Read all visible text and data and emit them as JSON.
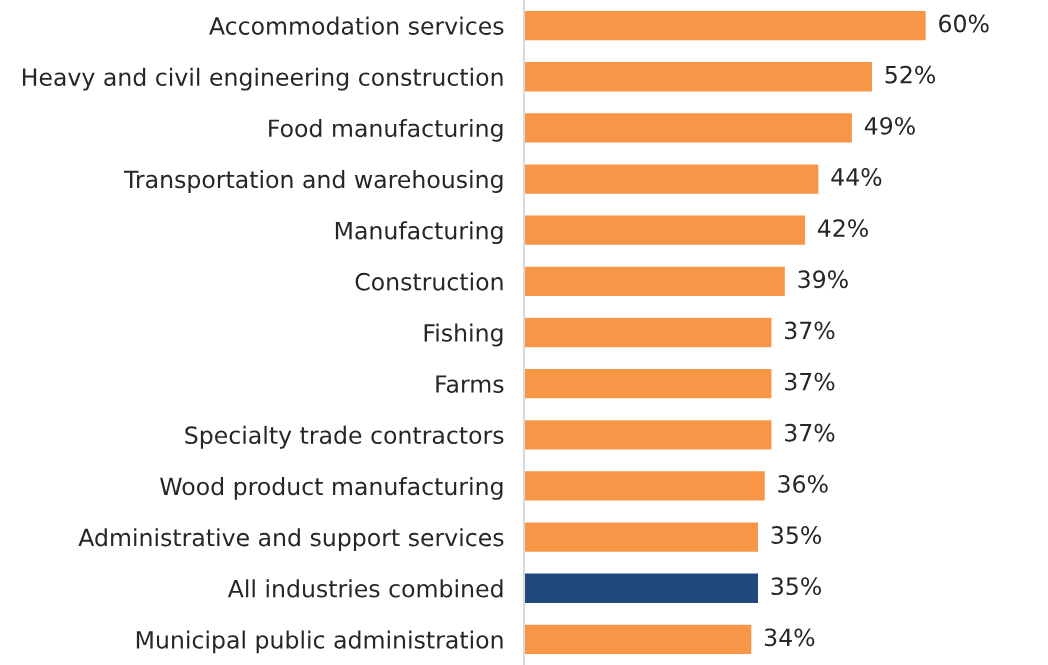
{
  "chart_data": {
    "type": "bar",
    "orientation": "horizontal",
    "categories": [
      "Accommodation services",
      "Heavy and civil engineering construction",
      "Food manufacturing",
      "Transportation and warehousing",
      "Manufacturing",
      "Construction",
      "Fishing",
      "Farms",
      "Specialty trade contractors",
      "Wood product manufacturing",
      "Administrative and support services",
      "All industries combined",
      "Municipal public administration"
    ],
    "values": [
      60,
      52,
      49,
      44,
      42,
      39,
      37,
      37,
      37,
      36,
      35,
      35,
      34
    ],
    "colors": [
      "#f79646",
      "#f79646",
      "#f79646",
      "#f79646",
      "#f79646",
      "#f79646",
      "#f79646",
      "#f79646",
      "#f79646",
      "#f79646",
      "#f79646",
      "#1f497d",
      "#f79646"
    ],
    "value_labels": [
      "60%",
      "52%",
      "49%",
      "44%",
      "42%",
      "39%",
      "37%",
      "37%",
      "37%",
      "36%",
      "35%",
      "35%",
      "34%"
    ],
    "tick_labels": "y",
    "grid": false,
    "legend": false
  }
}
